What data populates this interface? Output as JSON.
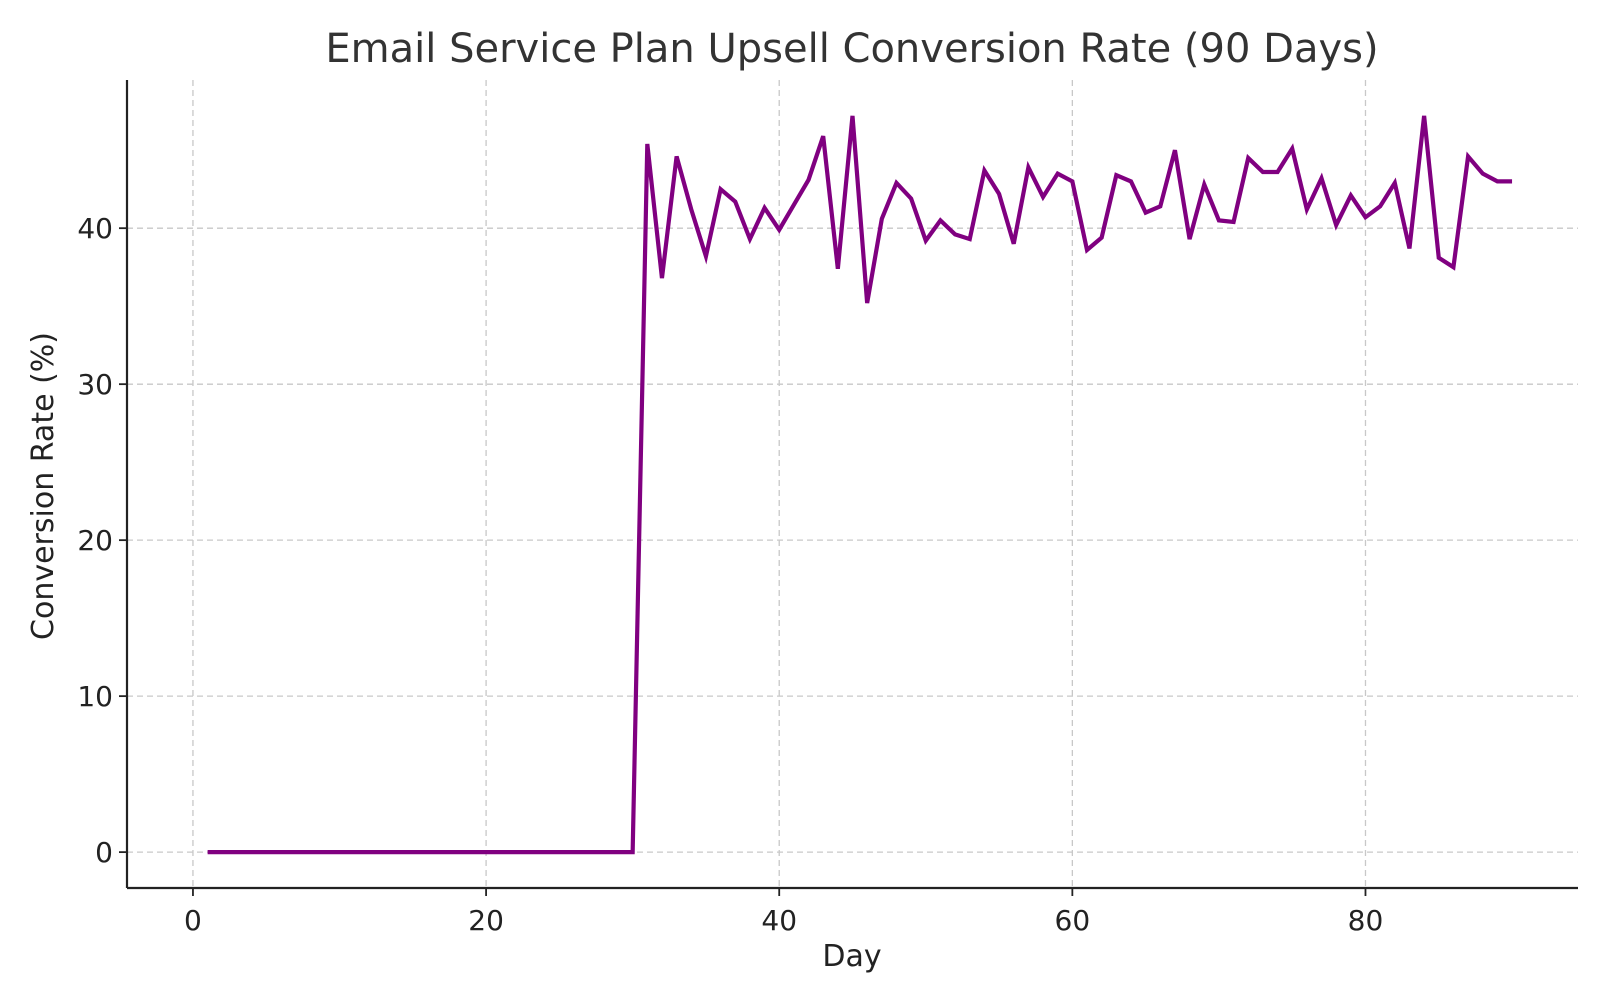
{
  "chart_data": {
    "type": "line",
    "title": "Email Service Plan Upsell Conversion Rate (90 Days)",
    "xlabel": "Day",
    "ylabel": "Conversion Rate (%)",
    "xlim": [
      -4.5,
      94.5
    ],
    "ylim": [
      -2.3,
      49.5
    ],
    "x_ticks": [
      0,
      20,
      40,
      60,
      80
    ],
    "y_ticks": [
      0,
      10,
      20,
      30,
      40
    ],
    "grid": true,
    "line_color": "#800080",
    "series": [
      {
        "x": [
          1,
          2,
          3,
          4,
          5,
          6,
          7,
          8,
          9,
          10,
          11,
          12,
          13,
          14,
          15,
          16,
          17,
          18,
          19,
          20,
          21,
          22,
          23,
          24,
          25,
          26,
          27,
          28,
          29,
          30,
          31,
          32,
          33,
          34,
          35,
          36,
          37,
          38,
          39,
          40,
          41,
          42,
          43,
          44,
          45,
          46,
          47,
          48,
          49,
          50,
          51,
          52,
          53,
          54,
          55,
          56,
          57,
          58,
          59,
          60,
          61,
          62,
          63,
          64,
          65,
          66,
          67,
          68,
          69,
          70,
          71,
          72,
          73,
          74,
          75,
          76,
          77,
          78,
          79,
          80,
          81,
          82,
          83,
          84,
          85,
          86,
          87,
          88,
          89,
          90
        ],
        "values": [
          0,
          0,
          0,
          0,
          0,
          0,
          0,
          0,
          0,
          0,
          0,
          0,
          0,
          0,
          0,
          0,
          0,
          0,
          0,
          0,
          0,
          0,
          0,
          0,
          0,
          0,
          0,
          0,
          0,
          0,
          45.4,
          36.8,
          44.6,
          41.2,
          38.2,
          42.5,
          41.7,
          39.3,
          41.3,
          39.9,
          41.5,
          43.1,
          45.9,
          37.4,
          47.2,
          35.2,
          40.6,
          42.9,
          41.9,
          39.2,
          40.5,
          39.6,
          39.3,
          43.7,
          42.2,
          39.0,
          43.9,
          42.0,
          43.5,
          43.0,
          38.6,
          39.4,
          43.4,
          43.0,
          41.0,
          41.4,
          45.0,
          39.3,
          42.8,
          40.5,
          40.4,
          44.5,
          43.6,
          43.6,
          45.1,
          41.2,
          43.2,
          40.2,
          42.1,
          40.7,
          41.4,
          42.9,
          38.7,
          47.2,
          38.1,
          37.5,
          44.6,
          43.5,
          43.0,
          43.0
        ]
      }
    ]
  }
}
